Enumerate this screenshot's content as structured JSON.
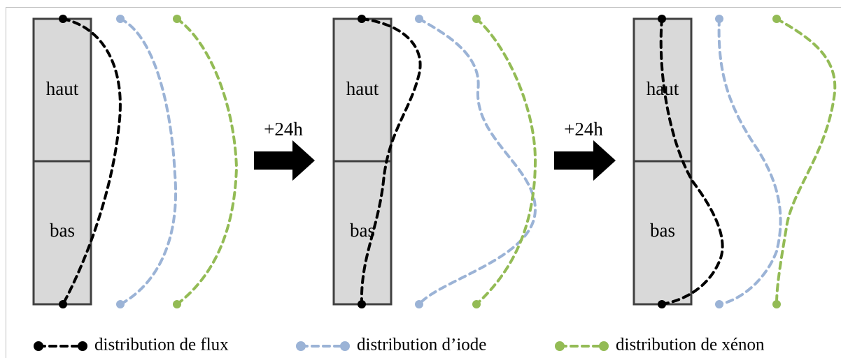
{
  "panels": [
    {
      "top_label": "haut",
      "bottom_label": "bas"
    },
    {
      "top_label": "haut",
      "bottom_label": "bas"
    },
    {
      "top_label": "haut",
      "bottom_label": "bas"
    }
  ],
  "arrows": [
    {
      "label": "+24h"
    },
    {
      "label": "+24h"
    }
  ],
  "legend": [
    {
      "label": "distribution de flux",
      "color": "#000000"
    },
    {
      "label": "distribution d’iode",
      "color": "#9bb3d6"
    },
    {
      "label": "distribution de xénon",
      "color": "#93bb55"
    }
  ]
}
